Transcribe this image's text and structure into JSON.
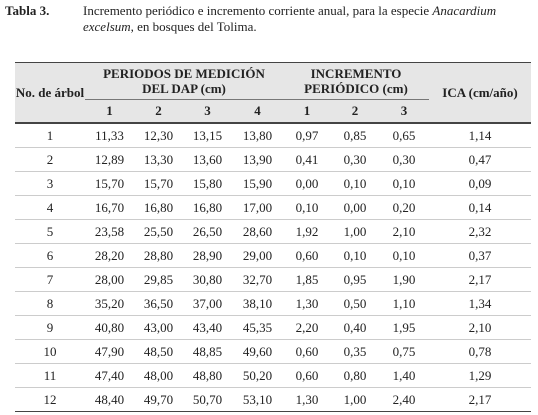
{
  "caption": {
    "label": "Tabla 3.",
    "text_before": "Incremento periódico e incremento corriente anual, para la especie",
    "species": "Anacardium excelsum",
    "text_after": ", en bosques del Tolima."
  },
  "table": {
    "header": {
      "tree": "No. de árbol",
      "periods": "PERIODOS DE MEDICIÓN DEL DAP (cm)",
      "increment": "INCREMENTO PERIÓDICO (cm)",
      "ica": "ICA (cm/año)",
      "period_cols": [
        "1",
        "2",
        "3",
        "4"
      ],
      "increment_cols": [
        "1",
        "2",
        "3"
      ]
    },
    "rows": [
      [
        "1",
        "11,33",
        "12,30",
        "13,15",
        "13,80",
        "0,97",
        "0,85",
        "0,65",
        "1,14"
      ],
      [
        "2",
        "12,89",
        "13,30",
        "13,60",
        "13,90",
        "0,41",
        "0,30",
        "0,30",
        "0,47"
      ],
      [
        "3",
        "15,70",
        "15,70",
        "15,80",
        "15,90",
        "0,00",
        "0,10",
        "0,10",
        "0,09"
      ],
      [
        "4",
        "16,70",
        "16,80",
        "16,80",
        "17,00",
        "0,10",
        "0,00",
        "0,20",
        "0,14"
      ],
      [
        "5",
        "23,58",
        "25,50",
        "26,50",
        "28,60",
        "1,92",
        "1,00",
        "2,10",
        "2,32"
      ],
      [
        "6",
        "28,20",
        "28,80",
        "28,90",
        "29,00",
        "0,60",
        "0,10",
        "0,10",
        "0,37"
      ],
      [
        "7",
        "28,00",
        "29,85",
        "30,80",
        "32,70",
        "1,85",
        "0,95",
        "1,90",
        "2,17"
      ],
      [
        "8",
        "35,20",
        "36,50",
        "37,00",
        "38,10",
        "1,30",
        "0,50",
        "1,10",
        "1,34"
      ],
      [
        "9",
        "40,80",
        "43,00",
        "43,40",
        "45,35",
        "2,20",
        "0,40",
        "1,95",
        "2,10"
      ],
      [
        "10",
        "47,90",
        "48,50",
        "48,85",
        "49,60",
        "0,60",
        "0,35",
        "0,75",
        "0,78"
      ],
      [
        "11",
        "47,40",
        "48,00",
        "48,80",
        "50,20",
        "0,60",
        "0,80",
        "1,40",
        "1,29"
      ],
      [
        "12",
        "48,40",
        "49,70",
        "50,70",
        "53,10",
        "1,30",
        "1,00",
        "2,40",
        "2,17"
      ]
    ]
  }
}
